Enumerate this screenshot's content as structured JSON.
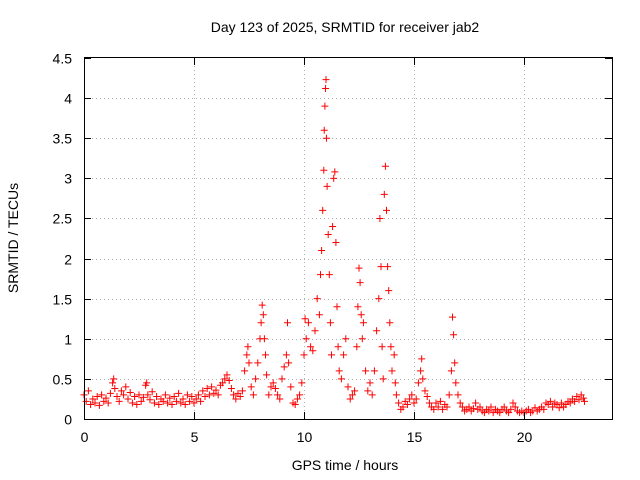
{
  "chart_data": {
    "type": "scatter",
    "title": "Day 123 of 2025, SRMTID for receiver jab2",
    "xlabel": "GPS time / hours",
    "ylabel": "SRMTID / TECUs",
    "xlim": [
      0,
      24
    ],
    "ylim": [
      0,
      4.5
    ],
    "xticks": [
      0,
      5,
      10,
      15,
      20
    ],
    "xtick_labels": [
      "0",
      "5",
      "10",
      "15",
      "20"
    ],
    "yticks": [
      0,
      0.5,
      1,
      1.5,
      2,
      2.5,
      3,
      3.5,
      4,
      4.5
    ],
    "ytick_labels": [
      "0",
      "0.5",
      "1",
      "1.5",
      "2",
      "2.5",
      "3",
      "3.5",
      "4",
      "4.5"
    ],
    "grid": true,
    "marker": "+",
    "series_color": "#ff0000",
    "series": [
      {
        "name": "SRMTID",
        "points": [
          [
            0.0,
            0.3
          ],
          [
            0.1,
            0.22
          ],
          [
            0.2,
            0.35
          ],
          [
            0.3,
            0.18
          ],
          [
            0.4,
            0.25
          ],
          [
            0.5,
            0.2
          ],
          [
            0.6,
            0.28
          ],
          [
            0.7,
            0.17
          ],
          [
            0.8,
            0.3
          ],
          [
            0.9,
            0.22
          ],
          [
            1.0,
            0.26
          ],
          [
            1.1,
            0.2
          ],
          [
            1.2,
            0.32
          ],
          [
            1.3,
            0.45
          ],
          [
            1.35,
            0.5
          ],
          [
            1.4,
            0.38
          ],
          [
            1.5,
            0.28
          ],
          [
            1.6,
            0.22
          ],
          [
            1.7,
            0.35
          ],
          [
            1.8,
            0.3
          ],
          [
            1.9,
            0.4
          ],
          [
            2.0,
            0.25
          ],
          [
            2.1,
            0.33
          ],
          [
            2.2,
            0.2
          ],
          [
            2.3,
            0.28
          ],
          [
            2.4,
            0.18
          ],
          [
            2.5,
            0.3
          ],
          [
            2.6,
            0.22
          ],
          [
            2.7,
            0.27
          ],
          [
            2.8,
            0.42
          ],
          [
            2.85,
            0.45
          ],
          [
            2.9,
            0.3
          ],
          [
            3.0,
            0.24
          ],
          [
            3.1,
            0.34
          ],
          [
            3.2,
            0.2
          ],
          [
            3.3,
            0.28
          ],
          [
            3.4,
            0.18
          ],
          [
            3.5,
            0.25
          ],
          [
            3.6,
            0.22
          ],
          [
            3.7,
            0.3
          ],
          [
            3.8,
            0.2
          ],
          [
            3.9,
            0.26
          ],
          [
            4.0,
            0.18
          ],
          [
            4.1,
            0.28
          ],
          [
            4.2,
            0.22
          ],
          [
            4.3,
            0.32
          ],
          [
            4.4,
            0.2
          ],
          [
            4.5,
            0.25
          ],
          [
            4.6,
            0.18
          ],
          [
            4.7,
            0.3
          ],
          [
            4.8,
            0.22
          ],
          [
            4.9,
            0.28
          ],
          [
            5.0,
            0.2
          ],
          [
            5.1,
            0.25
          ],
          [
            5.2,
            0.3
          ],
          [
            5.3,
            0.22
          ],
          [
            5.4,
            0.35
          ],
          [
            5.5,
            0.28
          ],
          [
            5.6,
            0.38
          ],
          [
            5.7,
            0.3
          ],
          [
            5.8,
            0.4
          ],
          [
            5.9,
            0.32
          ],
          [
            6.0,
            0.36
          ],
          [
            6.1,
            0.3
          ],
          [
            6.2,
            0.42
          ],
          [
            6.3,
            0.45
          ],
          [
            6.4,
            0.5
          ],
          [
            6.5,
            0.55
          ],
          [
            6.6,
            0.48
          ],
          [
            6.7,
            0.38
          ],
          [
            6.8,
            0.3
          ],
          [
            6.9,
            0.25
          ],
          [
            7.0,
            0.32
          ],
          [
            7.1,
            0.28
          ],
          [
            7.2,
            0.35
          ],
          [
            7.3,
            0.6
          ],
          [
            7.4,
            0.8
          ],
          [
            7.45,
            0.9
          ],
          [
            7.5,
            0.7
          ],
          [
            7.6,
            0.4
          ],
          [
            7.7,
            0.3
          ],
          [
            7.8,
            0.5
          ],
          [
            7.9,
            0.7
          ],
          [
            8.0,
            1.0
          ],
          [
            8.05,
            1.2
          ],
          [
            8.1,
            1.42
          ],
          [
            8.15,
            1.3
          ],
          [
            8.2,
            1.0
          ],
          [
            8.25,
            0.8
          ],
          [
            8.3,
            0.55
          ],
          [
            8.4,
            0.3
          ],
          [
            8.5,
            0.4
          ],
          [
            8.6,
            0.45
          ],
          [
            8.7,
            0.38
          ],
          [
            8.8,
            0.3
          ],
          [
            8.9,
            0.25
          ],
          [
            9.0,
            0.5
          ],
          [
            9.1,
            0.65
          ],
          [
            9.2,
            0.8
          ],
          [
            9.25,
            1.2
          ],
          [
            9.3,
            0.7
          ],
          [
            9.4,
            0.4
          ],
          [
            9.5,
            0.2
          ],
          [
            9.6,
            0.18
          ],
          [
            9.7,
            0.25
          ],
          [
            9.8,
            0.3
          ],
          [
            9.9,
            0.45
          ],
          [
            10.0,
            0.8
          ],
          [
            10.05,
            1.25
          ],
          [
            10.1,
            1.0
          ],
          [
            10.2,
            1.2
          ],
          [
            10.3,
            0.9
          ],
          [
            10.4,
            0.85
          ],
          [
            10.5,
            1.1
          ],
          [
            10.6,
            1.5
          ],
          [
            10.7,
            1.3
          ],
          [
            10.75,
            1.8
          ],
          [
            10.8,
            2.1
          ],
          [
            10.85,
            2.6
          ],
          [
            10.9,
            3.1
          ],
          [
            10.92,
            3.6
          ],
          [
            10.95,
            3.9
          ],
          [
            10.98,
            4.12
          ],
          [
            11.0,
            4.23
          ],
          [
            11.02,
            3.5
          ],
          [
            11.05,
            2.9
          ],
          [
            11.1,
            2.3
          ],
          [
            11.15,
            1.8
          ],
          [
            11.2,
            1.2
          ],
          [
            11.25,
            0.8
          ],
          [
            11.3,
            2.4
          ],
          [
            11.35,
            3.0
          ],
          [
            11.4,
            3.08
          ],
          [
            11.45,
            2.2
          ],
          [
            11.5,
            1.4
          ],
          [
            11.55,
            0.9
          ],
          [
            11.6,
            0.6
          ],
          [
            11.7,
            0.5
          ],
          [
            11.8,
            0.8
          ],
          [
            11.9,
            1.0
          ],
          [
            12.0,
            0.4
          ],
          [
            12.1,
            0.25
          ],
          [
            12.2,
            0.3
          ],
          [
            12.3,
            0.35
          ],
          [
            12.4,
            0.9
          ],
          [
            12.45,
            1.4
          ],
          [
            12.5,
            1.88
          ],
          [
            12.55,
            1.7
          ],
          [
            12.6,
            1.3
          ],
          [
            12.65,
            1.0
          ],
          [
            12.7,
            1.2
          ],
          [
            12.8,
            0.6
          ],
          [
            12.9,
            0.35
          ],
          [
            13.0,
            0.45
          ],
          [
            13.1,
            0.3
          ],
          [
            13.2,
            0.6
          ],
          [
            13.3,
            1.1
          ],
          [
            13.4,
            1.5
          ],
          [
            13.45,
            2.5
          ],
          [
            13.5,
            1.9
          ],
          [
            13.55,
            0.9
          ],
          [
            13.6,
            0.5
          ],
          [
            13.65,
            2.8
          ],
          [
            13.7,
            3.15
          ],
          [
            13.75,
            2.6
          ],
          [
            13.8,
            1.9
          ],
          [
            13.85,
            1.6
          ],
          [
            13.9,
            1.2
          ],
          [
            13.95,
            0.9
          ],
          [
            14.0,
            0.6
          ],
          [
            14.1,
            0.8
          ],
          [
            14.15,
            0.45
          ],
          [
            14.2,
            0.3
          ],
          [
            14.3,
            0.2
          ],
          [
            14.4,
            0.12
          ],
          [
            14.5,
            0.15
          ],
          [
            14.6,
            0.22
          ],
          [
            14.7,
            0.18
          ],
          [
            14.8,
            0.25
          ],
          [
            14.9,
            0.3
          ],
          [
            15.0,
            0.2
          ],
          [
            15.1,
            0.25
          ],
          [
            15.2,
            0.45
          ],
          [
            15.3,
            0.6
          ],
          [
            15.35,
            0.75
          ],
          [
            15.4,
            0.5
          ],
          [
            15.5,
            0.35
          ],
          [
            15.6,
            0.28
          ],
          [
            15.7,
            0.2
          ],
          [
            15.8,
            0.15
          ],
          [
            15.9,
            0.12
          ],
          [
            16.0,
            0.2
          ],
          [
            16.1,
            0.15
          ],
          [
            16.2,
            0.22
          ],
          [
            16.3,
            0.12
          ],
          [
            16.4,
            0.18
          ],
          [
            16.5,
            0.15
          ],
          [
            16.6,
            0.3
          ],
          [
            16.7,
            0.6
          ],
          [
            16.75,
            1.27
          ],
          [
            16.8,
            1.05
          ],
          [
            16.85,
            0.7
          ],
          [
            16.9,
            0.45
          ],
          [
            17.0,
            0.3
          ],
          [
            17.1,
            0.2
          ],
          [
            17.2,
            0.15
          ],
          [
            17.3,
            0.1
          ],
          [
            17.4,
            0.12
          ],
          [
            17.5,
            0.15
          ],
          [
            17.6,
            0.1
          ],
          [
            17.7,
            0.13
          ],
          [
            17.8,
            0.2
          ],
          [
            17.9,
            0.12
          ],
          [
            18.0,
            0.15
          ],
          [
            18.1,
            0.1
          ],
          [
            18.2,
            0.08
          ],
          [
            18.3,
            0.12
          ],
          [
            18.4,
            0.1
          ],
          [
            18.5,
            0.15
          ],
          [
            18.6,
            0.08
          ],
          [
            18.7,
            0.12
          ],
          [
            18.8,
            0.1
          ],
          [
            18.9,
            0.08
          ],
          [
            19.0,
            0.12
          ],
          [
            19.1,
            0.15
          ],
          [
            19.2,
            0.1
          ],
          [
            19.3,
            0.08
          ],
          [
            19.4,
            0.12
          ],
          [
            19.5,
            0.2
          ],
          [
            19.6,
            0.15
          ],
          [
            19.7,
            0.1
          ],
          [
            19.8,
            0.08
          ],
          [
            19.9,
            0.1
          ],
          [
            20.0,
            0.08
          ],
          [
            20.1,
            0.1
          ],
          [
            20.2,
            0.12
          ],
          [
            20.3,
            0.08
          ],
          [
            20.4,
            0.1
          ],
          [
            20.5,
            0.14
          ],
          [
            20.6,
            0.1
          ],
          [
            20.7,
            0.12
          ],
          [
            20.8,
            0.15
          ],
          [
            20.9,
            0.12
          ],
          [
            21.0,
            0.2
          ],
          [
            21.1,
            0.18
          ],
          [
            21.2,
            0.22
          ],
          [
            21.3,
            0.15
          ],
          [
            21.4,
            0.2
          ],
          [
            21.5,
            0.18
          ],
          [
            21.6,
            0.14
          ],
          [
            21.7,
            0.2
          ],
          [
            21.8,
            0.15
          ],
          [
            21.9,
            0.18
          ],
          [
            22.0,
            0.22
          ],
          [
            22.1,
            0.2
          ],
          [
            22.2,
            0.25
          ],
          [
            22.3,
            0.22
          ],
          [
            22.4,
            0.28
          ],
          [
            22.5,
            0.24
          ],
          [
            22.6,
            0.3
          ],
          [
            22.7,
            0.26
          ],
          [
            22.75,
            0.22
          ]
        ]
      }
    ]
  }
}
